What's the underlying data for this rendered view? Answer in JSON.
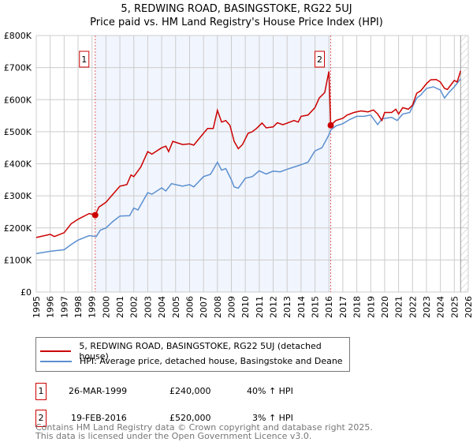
{
  "title": "5, REDWING ROAD, BASINGSTOKE, RG22 5UJ",
  "subtitle": "Price paid vs. HM Land Registry's House Price Index (HPI)",
  "chart_data": {
    "type": "line",
    "title": "5, REDWING ROAD, BASINGSTOKE, RG22 5UJ",
    "subtitle": "Price paid vs. HM Land Registry's House Price Index (HPI)",
    "xlim": [
      1995,
      2026
    ],
    "ylim": [
      0,
      800000
    ],
    "y_ticks": [
      {
        "v": 0,
        "label": "£0"
      },
      {
        "v": 100000,
        "label": "£100K"
      },
      {
        "v": 200000,
        "label": "£200K"
      },
      {
        "v": 300000,
        "label": "£300K"
      },
      {
        "v": 400000,
        "label": "£400K"
      },
      {
        "v": 500000,
        "label": "£500K"
      },
      {
        "v": 600000,
        "label": "£600K"
      },
      {
        "v": 700000,
        "label": "£700K"
      },
      {
        "v": 800000,
        "label": "£800K"
      }
    ],
    "x_ticks": [
      "1995",
      "1996",
      "1997",
      "1998",
      "1999",
      "2000",
      "2001",
      "2002",
      "2003",
      "2004",
      "2005",
      "2006",
      "2007",
      "2008",
      "2009",
      "2010",
      "2011",
      "2012",
      "2013",
      "2014",
      "2015",
      "2016",
      "2017",
      "2018",
      "2019",
      "2020",
      "2021",
      "2022",
      "2023",
      "2024",
      "2025",
      "2026"
    ],
    "grid": true,
    "shaded_range": [
      1999.23,
      2016.13
    ],
    "forecast_hatch_from": 2025.45,
    "series": [
      {
        "name": "5, REDWING ROAD, BASINGSTOKE, RG22 5UJ (detached house)",
        "color": "#cc0000",
        "x": [
          1995,
          1996,
          1996.3,
          1997,
          1997.5,
          1998,
          1998.8,
          1999.23,
          1999.5,
          2000,
          2000.5,
          2001,
          2001.5,
          2001.8,
          2002,
          2002.5,
          2003,
          2003.3,
          2004,
          2004.3,
          2004.5,
          2004.8,
          2005.5,
          2006,
          2006.3,
          2007,
          2007.3,
          2007.7,
          2008,
          2008.3,
          2008.6,
          2008.9,
          2009.2,
          2009.5,
          2009.8,
          2010.2,
          2010.5,
          2010.8,
          2011.2,
          2011.5,
          2012,
          2012.3,
          2012.7,
          2013.2,
          2013.5,
          2013.8,
          2014,
          2014.5,
          2015,
          2015.3,
          2015.7,
          2016.0,
          2016.13,
          2016.5,
          2017,
          2017.3,
          2017.8,
          2018.3,
          2018.8,
          2019.2,
          2019.5,
          2019.8,
          2020,
          2020.5,
          2020.8,
          2021,
          2021.3,
          2021.7,
          2022,
          2022.3,
          2022.6,
          2023,
          2023.3,
          2023.7,
          2024,
          2024.3,
          2024.5,
          2025,
          2025.2,
          2025.45
        ],
        "y": [
          170000,
          180000,
          173000,
          185000,
          213000,
          227000,
          245000,
          240000,
          265000,
          280000,
          305000,
          330000,
          335000,
          365000,
          360000,
          390000,
          438000,
          430000,
          450000,
          455000,
          438000,
          470000,
          460000,
          462000,
          458000,
          495000,
          510000,
          510000,
          567000,
          530000,
          535000,
          520000,
          470000,
          447000,
          460000,
          495000,
          500000,
          510000,
          527000,
          512000,
          515000,
          528000,
          522000,
          530000,
          535000,
          530000,
          548000,
          552000,
          575000,
          605000,
          622000,
          688000,
          520000,
          535000,
          542000,
          552000,
          560000,
          565000,
          562000,
          568000,
          555000,
          535000,
          560000,
          560000,
          570000,
          555000,
          575000,
          570000,
          583000,
          620000,
          628000,
          650000,
          662000,
          663000,
          655000,
          635000,
          632000,
          660000,
          655000,
          690000
        ]
      },
      {
        "name": "HPI: Average price, detached house, Basingstoke and Deane",
        "color": "#5b8fd0",
        "x": [
          1995,
          1996,
          1997,
          1997.5,
          1998,
          1998.8,
          1999.3,
          1999.6,
          2000,
          2000.5,
          2001,
          2001.7,
          2002,
          2002.3,
          2003,
          2003.3,
          2004,
          2004.3,
          2004.7,
          2005.5,
          2006,
          2006.3,
          2007,
          2007.5,
          2008,
          2008.3,
          2008.6,
          2009,
          2009.2,
          2009.5,
          2010,
          2010.5,
          2011,
          2011.5,
          2012,
          2012.5,
          2013,
          2013.5,
          2014,
          2014.5,
          2015,
          2015.5,
          2016,
          2016.13,
          2016.5,
          2017,
          2017.5,
          2018,
          2018.5,
          2019,
          2019.5,
          2019.8,
          2020.5,
          2020.9,
          2021.3,
          2021.8,
          2022.3,
          2022.6,
          2023,
          2023.5,
          2024,
          2024.3,
          2024.6,
          2025,
          2025.45
        ],
        "y": [
          120000,
          127000,
          132000,
          148000,
          162000,
          176000,
          173000,
          193000,
          200000,
          220000,
          237000,
          238000,
          262000,
          256000,
          310000,
          305000,
          325000,
          315000,
          338000,
          330000,
          335000,
          328000,
          360000,
          367000,
          405000,
          380000,
          385000,
          350000,
          328000,
          324000,
          355000,
          360000,
          378000,
          368000,
          377000,
          375000,
          383000,
          390000,
          397000,
          405000,
          440000,
          450000,
          490000,
          505000,
          518000,
          525000,
          538000,
          548000,
          548000,
          552000,
          522000,
          540000,
          545000,
          535000,
          555000,
          560000,
          605000,
          615000,
          635000,
          640000,
          630000,
          605000,
          622000,
          640000,
          665000
        ]
      }
    ],
    "sales": [
      {
        "label": "1",
        "x": 1999.23,
        "y": 240000
      },
      {
        "label": "2",
        "x": 2016.13,
        "y": 520000
      }
    ]
  },
  "legend": {
    "property": "5, REDWING ROAD, BASINGSTOKE, RG22 5UJ (detached house)",
    "hpi": "HPI: Average price, detached house, Basingstoke and Deane"
  },
  "transactions": [
    {
      "num": "1",
      "date": "26-MAR-1999",
      "price": "£240,000",
      "hpi": "40% ↑ HPI"
    },
    {
      "num": "2",
      "date": "19-FEB-2016",
      "price": "£520,000",
      "hpi": "3% ↑ HPI"
    }
  ],
  "footer": [
    "Contains HM Land Registry data © Crown copyright and database right 2025.",
    "This data is licensed under the Open Government Licence v3.0."
  ]
}
